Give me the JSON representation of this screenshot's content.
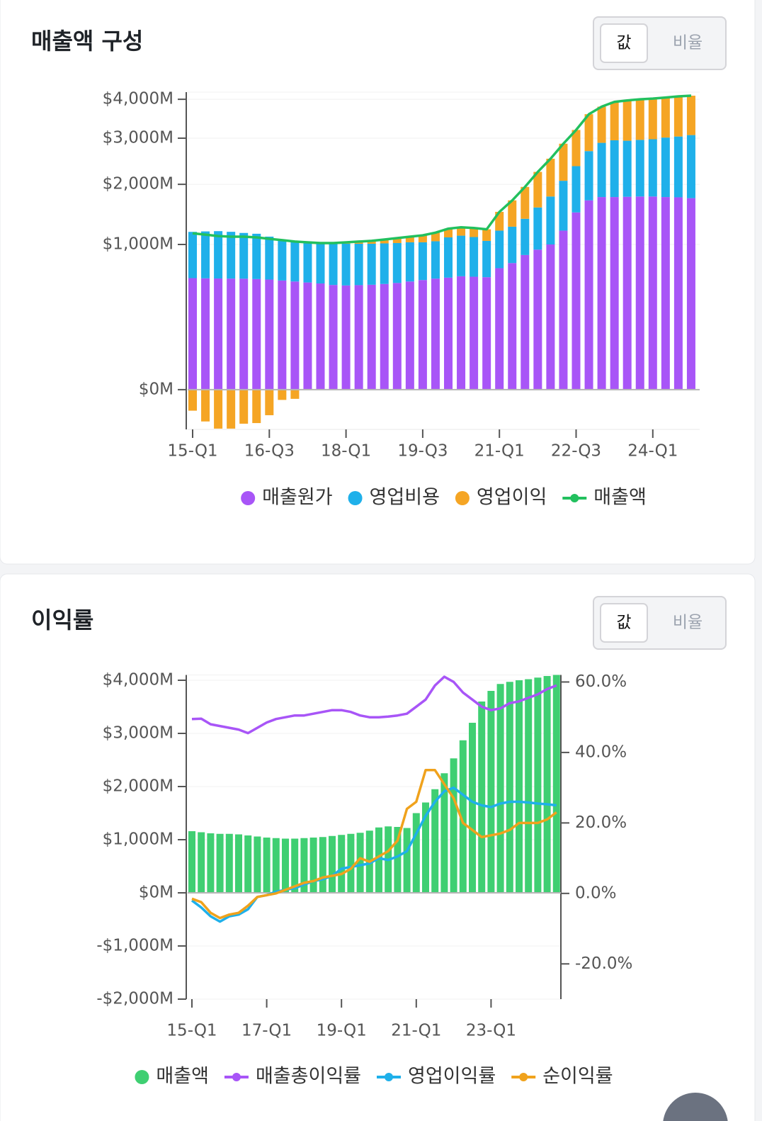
{
  "chart_data": [
    {
      "type": "bar",
      "stacked": true,
      "title": "매출액 구성",
      "toggle": [
        "값",
        "비율"
      ],
      "yscale": "sqrt",
      "grid": true,
      "categories": [
        "15-Q1",
        null,
        null,
        null,
        null,
        null,
        "16-Q3",
        null,
        null,
        null,
        null,
        null,
        "18-Q1",
        null,
        null,
        null,
        null,
        null,
        "19-Q3",
        null,
        null,
        null,
        null,
        null,
        "21-Q1",
        null,
        null,
        null,
        null,
        null,
        "22-Q3",
        null,
        null,
        null,
        null,
        null,
        "24-Q1",
        null,
        null,
        null
      ],
      "ylim": [
        -75,
        4200
      ],
      "yticks": [
        {
          "value": 0,
          "label": "$0M"
        },
        {
          "value": 1000,
          "label": "$1,000M"
        },
        {
          "value": 2000,
          "label": "$2,000M"
        },
        {
          "value": 3000,
          "label": "$3,000M"
        },
        {
          "value": 4000,
          "label": "$4,000M"
        }
      ],
      "series": [
        {
          "name": "매출원가",
          "type": "bar",
          "color": "#a855f7",
          "values": [
            590,
            588,
            586,
            585,
            584,
            580,
            575,
            565,
            555,
            545,
            535,
            520,
            515,
            518,
            522,
            530,
            540,
            555,
            570,
            585,
            595,
            610,
            605,
            600,
            700,
            760,
            860,
            930,
            1000,
            1200,
            1490,
            1700,
            1760,
            1760,
            1765,
            1770,
            1770,
            1760,
            1755,
            1740
          ]
        },
        {
          "name": "영업비용",
          "type": "bar",
          "color": "#1fb0ea",
          "values": [
            591,
            600,
            606,
            597,
            581,
            573,
            536,
            500,
            489,
            480,
            475,
            485,
            495,
            492,
            488,
            485,
            480,
            475,
            460,
            460,
            505,
            515,
            500,
            450,
            500,
            500,
            525,
            645,
            770,
            870,
            880,
            1000,
            1130,
            1190,
            1175,
            1190,
            1205,
            1255,
            1285,
            1335
          ]
        },
        {
          "name": "영업이익",
          "type": "bar",
          "color": "#f5a524",
          "values": [
            -21,
            -48,
            -72,
            -72,
            -55,
            -53,
            -31,
            -5,
            -4,
            5,
            10,
            15,
            20,
            30,
            40,
            55,
            70,
            80,
            100,
            125,
            130,
            125,
            135,
            170,
            300,
            440,
            565,
            675,
            760,
            800,
            830,
            900,
            910,
            980,
            1030,
            1040,
            1045,
            1035,
            1040,
            1025
          ]
        },
        {
          "name": "매출액",
          "type": "line",
          "color": "#22c05e",
          "values": [
            1160,
            1140,
            1120,
            1110,
            1110,
            1100,
            1080,
            1060,
            1040,
            1030,
            1020,
            1020,
            1030,
            1040,
            1050,
            1070,
            1090,
            1110,
            1130,
            1170,
            1230,
            1250,
            1240,
            1220,
            1500,
            1700,
            1950,
            2250,
            2530,
            2870,
            3200,
            3600,
            3800,
            3930,
            3970,
            4000,
            4020,
            4050,
            4080,
            4100
          ]
        }
      ]
    },
    {
      "type": "bar",
      "title": "이익률",
      "toggle": [
        "값",
        "비율"
      ],
      "grid": true,
      "categories": [
        "15-Q1",
        null,
        null,
        null,
        null,
        null,
        null,
        null,
        "17-Q1",
        null,
        null,
        null,
        null,
        null,
        null,
        null,
        "19-Q1",
        null,
        null,
        null,
        null,
        null,
        null,
        null,
        "21-Q1",
        null,
        null,
        null,
        null,
        null,
        null,
        null,
        "23-Q1",
        null,
        null,
        null,
        null,
        null,
        null,
        null
      ],
      "ylim": [
        -2000,
        4100
      ],
      "yticks": [
        {
          "value": -2000,
          "label": "-$2,000M"
        },
        {
          "value": -1000,
          "label": "-$1,000M"
        },
        {
          "value": 0,
          "label": "$0M"
        },
        {
          "value": 1000,
          "label": "$1,000M"
        },
        {
          "value": 2000,
          "label": "$2,000M"
        },
        {
          "value": 3000,
          "label": "$3,000M"
        },
        {
          "value": 4000,
          "label": "$4,000M"
        }
      ],
      "y2lim": [
        -30,
        62
      ],
      "y2ticks": [
        {
          "value": -20,
          "label": "-20.0%"
        },
        {
          "value": 0,
          "label": "0.0%"
        },
        {
          "value": 20,
          "label": "20.0%"
        },
        {
          "value": 40,
          "label": "40.0%"
        },
        {
          "value": 60,
          "label": "60.0%"
        }
      ],
      "series": [
        {
          "name": "매출액",
          "type": "bar",
          "color": "#3fcf72",
          "values": [
            1160,
            1140,
            1120,
            1110,
            1110,
            1100,
            1080,
            1060,
            1040,
            1030,
            1020,
            1020,
            1030,
            1040,
            1050,
            1070,
            1090,
            1110,
            1130,
            1170,
            1230,
            1250,
            1240,
            1220,
            1500,
            1700,
            1950,
            2250,
            2530,
            2870,
            3200,
            3600,
            3800,
            3930,
            3970,
            4000,
            4020,
            4050,
            4080,
            4100
          ]
        },
        {
          "name": "매출총이익률",
          "type": "line",
          "axis": "y2",
          "color": "#a855f7",
          "values": [
            49.5,
            49.6,
            48,
            47.5,
            47,
            46.5,
            45.5,
            47,
            48.5,
            49.5,
            50,
            50.5,
            50.5,
            51,
            51.5,
            52,
            52,
            51.5,
            50.5,
            50,
            50,
            50.2,
            50.5,
            51,
            53,
            55,
            59,
            61.5,
            60,
            57,
            55,
            53,
            52,
            52.5,
            54,
            54.5,
            55.5,
            56.5,
            58,
            59
          ]
        },
        {
          "name": "영업이익률",
          "type": "line",
          "axis": "y2",
          "color": "#1fb0ea",
          "values": [
            -2,
            -4,
            -6.5,
            -8,
            -6.5,
            -6,
            -4.5,
            -1,
            -0.5,
            0.5,
            1,
            1.5,
            2.5,
            3.5,
            4,
            5,
            7,
            7.5,
            8,
            8.5,
            10,
            9.5,
            10.5,
            12,
            17,
            22,
            26,
            29,
            30,
            28,
            26,
            25,
            24.5,
            25.5,
            26,
            26,
            25.8,
            25.5,
            25.3,
            25
          ]
        },
        {
          "name": "순이익률",
          "type": "line",
          "axis": "y2",
          "color": "#f0a21c",
          "values": [
            -1.5,
            -2.5,
            -5.5,
            -7,
            -6,
            -5.5,
            -3.5,
            -1,
            -0.5,
            0,
            1,
            2,
            3,
            3.5,
            4.5,
            5,
            5.5,
            7,
            10,
            9,
            10.5,
            12,
            15,
            24,
            26,
            35,
            35,
            31,
            27,
            20,
            18,
            16,
            16.5,
            17,
            18,
            20,
            20,
            20,
            21,
            23
          ]
        }
      ]
    }
  ]
}
